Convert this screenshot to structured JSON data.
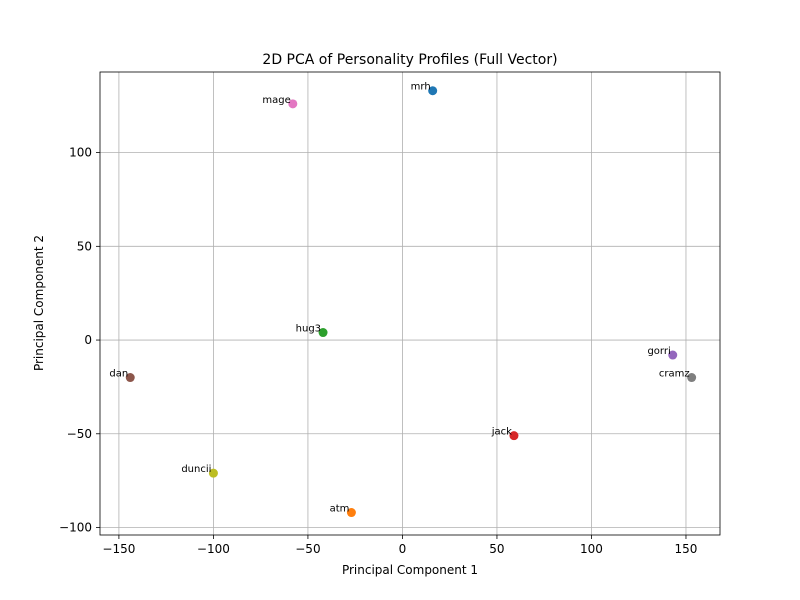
{
  "chart_data": {
    "type": "scatter",
    "title": "2D PCA of Personality Profiles (Full Vector)",
    "xlabel": "Principal Component 1",
    "ylabel": "Principal Component 2",
    "xlim": [
      -160,
      168
    ],
    "ylim": [
      -104,
      143
    ],
    "xticks": [
      -150,
      -100,
      -50,
      0,
      50,
      100,
      150
    ],
    "yticks": [
      -100,
      -50,
      0,
      50,
      100
    ],
    "xtick_labels": [
      "−150",
      "−100",
      "−50",
      "0",
      "50",
      "100",
      "150"
    ],
    "ytick_labels": [
      "−100",
      "−50",
      "0",
      "50",
      "100"
    ],
    "grid": true,
    "points": [
      {
        "label": "mrh",
        "x": 16,
        "y": 133,
        "color": "#1f77b4"
      },
      {
        "label": "atm",
        "x": -27,
        "y": -92,
        "color": "#ff7f0e"
      },
      {
        "label": "hug3",
        "x": -42,
        "y": 4,
        "color": "#2ca02c"
      },
      {
        "label": "jack",
        "x": 59,
        "y": -51,
        "color": "#d62728"
      },
      {
        "label": "gorri",
        "x": 143,
        "y": -8,
        "color": "#9467bd"
      },
      {
        "label": "dan",
        "x": -144,
        "y": -20,
        "color": "#8c564b"
      },
      {
        "label": "mage",
        "x": -58,
        "y": 126,
        "color": "#e377c2"
      },
      {
        "label": "cramz",
        "x": 153,
        "y": -20,
        "color": "#7f7f7f"
      },
      {
        "label": "duncii",
        "x": -100,
        "y": -71,
        "color": "#bcbd22"
      }
    ]
  }
}
